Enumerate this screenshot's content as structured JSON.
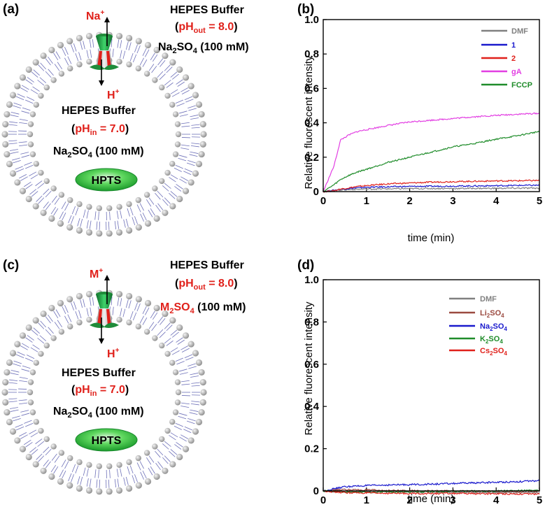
{
  "colors": {
    "dmf": "#808080",
    "c1": "#1a1acd",
    "c2": "#e0201a",
    "ga": "#e23ee2",
    "fccp": "#1f8c2a",
    "li": "#9b4a40",
    "na": "#1a1acd",
    "k": "#1f8c2a",
    "cs": "#e0201a",
    "red_label": "#e0201a",
    "vesicle_head": "#b4b4b4",
    "vesicle_tail": "#6d70b8",
    "channel_green": "#1f8c3a",
    "hpts_green": "#2fc840"
  },
  "panel_a": {
    "label": "(a)",
    "ion_top": "Na",
    "ion_top_sup": "+",
    "ion_bottom": "H",
    "ion_bottom_sup": "+",
    "outer_buffer": "HEPES Buffer",
    "outer_ph_prefix": "(",
    "outer_ph_main": "pH",
    "outer_ph_sub": "out",
    "outer_ph_value": " = 8.0",
    "outer_ph_suffix": ")",
    "outer_salt_main": "Na",
    "outer_salt_sub": "2",
    "outer_salt_mid": "SO",
    "outer_salt_sub2": "4",
    "outer_salt_conc": " (100 mM)",
    "inner_buffer": "HEPES Buffer",
    "inner_ph_prefix": "(",
    "inner_ph_main": "pH",
    "inner_ph_sub": "in",
    "inner_ph_value": " = 7.0",
    "inner_ph_suffix": ")",
    "inner_salt_main": "Na",
    "inner_salt_sub": "2",
    "inner_salt_mid": "SO",
    "inner_salt_sub2": "4",
    "inner_salt_conc": " (100 mM)",
    "dye": "HPTS"
  },
  "panel_c": {
    "label": "(c)",
    "ion_top": "M",
    "ion_top_sup": "+",
    "ion_bottom": "H",
    "ion_bottom_sup": "+",
    "outer_buffer": "HEPES Buffer",
    "outer_ph_prefix": "(",
    "outer_ph_main": "pH",
    "outer_ph_sub": "out",
    "outer_ph_value": " = 8.0",
    "outer_ph_suffix": ")",
    "outer_salt_main": "M",
    "outer_salt_sub": "2",
    "outer_salt_mid": "SO",
    "outer_salt_sub2": "4",
    "outer_salt_conc": " (100 mM)",
    "inner_buffer": "HEPES Buffer",
    "inner_ph_prefix": "(",
    "inner_ph_main": "pH",
    "inner_ph_sub": "in",
    "inner_ph_value": " = 7.0",
    "inner_ph_suffix": ")",
    "inner_salt_main": "Na",
    "inner_salt_sub": "2",
    "inner_salt_mid": "SO",
    "inner_salt_sub2": "4",
    "inner_salt_conc": " (100 mM)",
    "dye": "HPTS"
  },
  "chart_data": [
    {
      "panel": "(b)",
      "type": "line",
      "title": "",
      "xlabel": "time (min)",
      "ylabel": "Relative fluorescent intensity",
      "xlim": [
        0,
        5
      ],
      "ylim": [
        0,
        1.0
      ],
      "xticks": [
        0,
        1,
        2,
        3,
        4,
        5
      ],
      "yticks": [
        0,
        0.2,
        0.4,
        0.6,
        0.8,
        1.0
      ],
      "ytick_labels": [
        "0",
        "0.2",
        "0.4",
        "0.6",
        "0.8",
        "1.0"
      ],
      "legend_position": "top-right",
      "x": [
        0,
        0.25,
        0.4,
        0.6,
        0.8,
        1,
        1.5,
        2,
        2.5,
        3,
        3.5,
        4,
        4.5,
        5
      ],
      "series": [
        {
          "name": "DMF",
          "color_key": "dmf",
          "values": [
            0,
            0.005,
            0.01,
            0.012,
            0.014,
            0.015,
            0.016,
            0.017,
            0.018,
            0.018,
            0.019,
            0.019,
            0.02,
            0.02
          ]
        },
        {
          "name": "1",
          "color_key": "c1",
          "values": [
            0,
            0.008,
            0.014,
            0.018,
            0.022,
            0.025,
            0.028,
            0.03,
            0.031,
            0.032,
            0.033,
            0.034,
            0.036,
            0.037
          ]
        },
        {
          "name": "2",
          "color_key": "c2",
          "values": [
            0,
            0.005,
            0.015,
            0.022,
            0.03,
            0.035,
            0.045,
            0.05,
            0.055,
            0.058,
            0.06,
            0.062,
            0.063,
            0.065
          ]
        },
        {
          "name": "gA",
          "color_key": "ga",
          "values": [
            0,
            0.15,
            0.3,
            0.33,
            0.35,
            0.36,
            0.385,
            0.405,
            0.415,
            0.425,
            0.435,
            0.443,
            0.45,
            0.455
          ]
        },
        {
          "name": "FCCP",
          "color_key": "fccp",
          "values": [
            0,
            0.04,
            0.07,
            0.095,
            0.115,
            0.13,
            0.17,
            0.2,
            0.23,
            0.26,
            0.28,
            0.305,
            0.325,
            0.35
          ]
        }
      ]
    },
    {
      "panel": "(d)",
      "type": "line",
      "title": "",
      "xlabel": "time (min)",
      "ylabel": "Relative fluorescent intensity",
      "xlim": [
        0,
        5
      ],
      "ylim": [
        0,
        1.0
      ],
      "xticks": [
        0,
        1,
        2,
        3,
        4,
        5
      ],
      "yticks": [
        0,
        0.2,
        0.4,
        0.6,
        0.8,
        1.0
      ],
      "ytick_labels": [
        "0",
        "0.2",
        "0.4",
        "0.6",
        "0.8",
        "1.0"
      ],
      "legend_position": "top-right",
      "x": [
        0,
        0.25,
        0.5,
        1,
        1.5,
        2,
        2.5,
        3,
        3.5,
        4,
        4.5,
        5
      ],
      "series": [
        {
          "name": "DMF",
          "label_main": "DMF",
          "label_sub": "",
          "label_tail": "",
          "color_key": "dmf",
          "values": [
            0,
            -0.003,
            -0.005,
            -0.004,
            -0.005,
            -0.006,
            -0.006,
            -0.007,
            -0.007,
            -0.008,
            -0.008,
            -0.009
          ]
        },
        {
          "name": "Li2SO4",
          "label_main": "Li",
          "label_sub": "2",
          "label_tail": "SO",
          "label_sub2": "4",
          "color_key": "li",
          "values": [
            0,
            0.004,
            0.006,
            0.004,
            0.002,
            0.001,
            0.0,
            -0.001,
            -0.002,
            -0.002,
            -0.003,
            -0.003
          ]
        },
        {
          "name": "Na2SO4",
          "label_main": "Na",
          "label_sub": "2",
          "label_tail": "SO",
          "label_sub2": "4",
          "color_key": "na",
          "values": [
            0,
            0.01,
            0.02,
            0.025,
            0.028,
            0.03,
            0.032,
            0.035,
            0.038,
            0.041,
            0.044,
            0.048
          ]
        },
        {
          "name": "K2SO4",
          "label_main": "K",
          "label_sub": "2",
          "label_tail": "SO",
          "label_sub2": "4",
          "color_key": "k",
          "values": [
            0,
            -0.002,
            -0.004,
            -0.006,
            -0.005,
            -0.004,
            -0.003,
            -0.002,
            -0.001,
            0.0,
            0.001,
            0.002
          ]
        },
        {
          "name": "Cs2SO4",
          "label_main": "Cs",
          "label_sub": "2",
          "label_tail": "SO",
          "label_sub2": "4",
          "color_key": "cs",
          "values": [
            0,
            -0.004,
            -0.008,
            -0.01,
            -0.011,
            -0.012,
            -0.012,
            -0.012,
            -0.013,
            -0.013,
            -0.014,
            -0.015
          ]
        }
      ]
    }
  ]
}
